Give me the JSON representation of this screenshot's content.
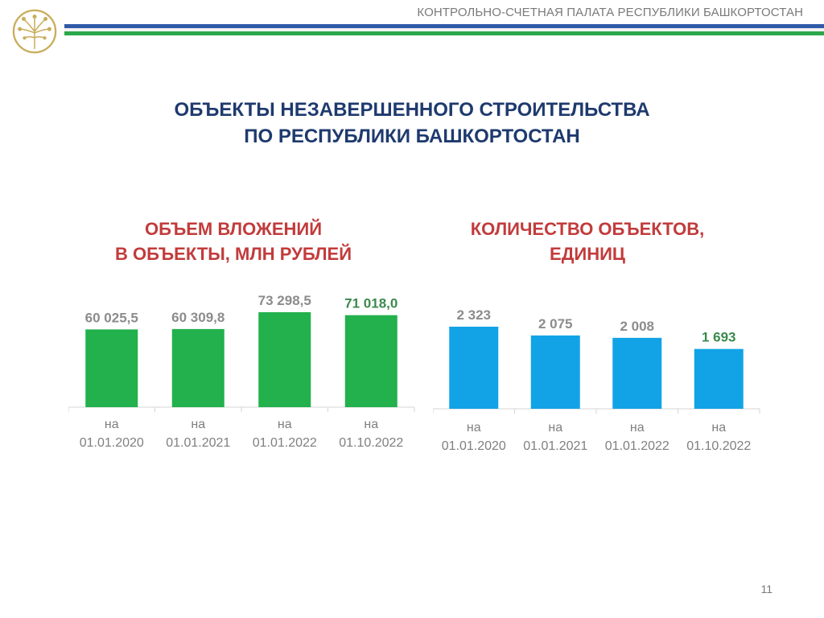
{
  "header": {
    "organization": "КОНТРОЛЬНО-СЧЕТНАЯ ПАЛАТА РЕСПУБЛИКИ БАШКОРТОСТАН",
    "logo_icon": "kurai-flower-emblem-icon",
    "logo_color": "#c9ad5a",
    "stripe_colors": [
      "#2f5aa8",
      "#f1f1f1",
      "#2aa84a"
    ]
  },
  "title": {
    "line1": "ОБЪЕКТЫ НЕЗАВЕРШЕННОГО СТРОИТЕЛЬСТВА",
    "line2": "ПО РЕСПУБЛИКИ БАШКОРТОСТАН"
  },
  "chart_data": [
    {
      "type": "bar",
      "title_line1": "ОБЪЕМ ВЛОЖЕНИЙ",
      "title_line2": "В ОБЪЕКТЫ, МЛН РУБЛЕЙ",
      "categories": [
        [
          "на",
          "01.01.2020"
        ],
        [
          "на",
          "01.01.2021"
        ],
        [
          "на",
          "01.01.2022"
        ],
        [
          "на",
          "01.10.2022"
        ]
      ],
      "values": [
        60025.5,
        60309.8,
        73298.5,
        71018.0
      ],
      "value_labels": [
        "60 025,5",
        "60 309,8",
        "73 298,5",
        "71 018,0"
      ],
      "highlighted_label_index": 3,
      "bar_color": "#22b14c",
      "label_color": "#8c8c8c",
      "highlight_label_color": "#3b8a4c",
      "grid": false
    },
    {
      "type": "bar",
      "title_line1": "КОЛИЧЕСТВО ОБЪЕКТОВ,",
      "title_line2": "ЕДИНИЦ",
      "categories": [
        [
          "на",
          "01.01.2020"
        ],
        [
          "на",
          "01.01.2021"
        ],
        [
          "на",
          "01.01.2022"
        ],
        [
          "на",
          "01.10.2022"
        ]
      ],
      "values": [
        2323,
        2075,
        2008,
        1693
      ],
      "value_labels": [
        "2 323",
        "2 075",
        "2 008",
        "1 693"
      ],
      "highlighted_label_index": 3,
      "bar_color": "#12a3e6",
      "label_color": "#8c8c8c",
      "highlight_label_color": "#3b8a4c",
      "grid": false
    }
  ],
  "footer": {
    "page_number": "11"
  }
}
